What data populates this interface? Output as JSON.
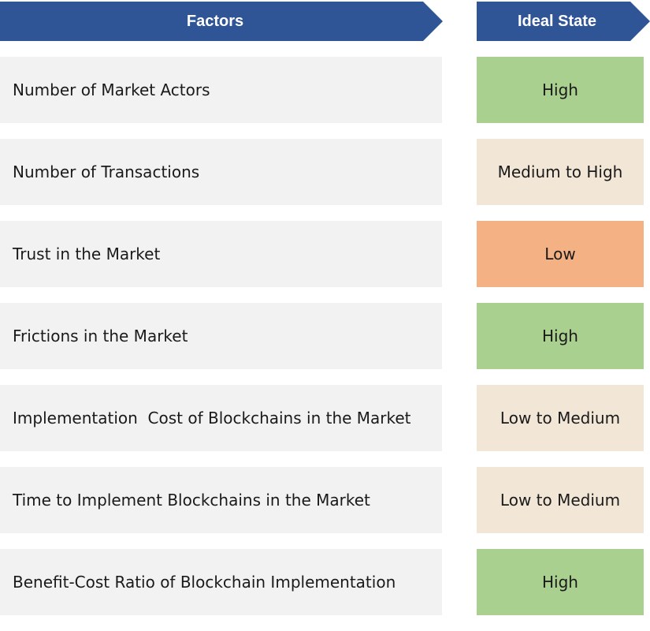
{
  "headers": {
    "factors": "Factors",
    "ideal_state": "Ideal State"
  },
  "colors": {
    "header": "#2f5597",
    "factor_bg": "#f2f2f2",
    "high": "#a9d08e",
    "medium": "#f2e6d6",
    "low": "#f4b183"
  },
  "rows": [
    {
      "factor": "Number of Market Actors",
      "ideal": "High",
      "level": "high"
    },
    {
      "factor": "Number of Transactions",
      "ideal": "Medium to High",
      "level": "medium"
    },
    {
      "factor": "Trust in the Market",
      "ideal": "Low",
      "level": "low"
    },
    {
      "factor": "Frictions in the Market",
      "ideal": "High",
      "level": "high"
    },
    {
      "factor": "Implementation  Cost of Blockchains in the Market",
      "ideal": "Low to Medium",
      "level": "medium"
    },
    {
      "factor": "Time to Implement Blockchains in the Market",
      "ideal": "Low to Medium",
      "level": "medium"
    },
    {
      "factor": "Benefit-Cost Ratio of Blockchain Implementation",
      "ideal": "High",
      "level": "high"
    }
  ]
}
